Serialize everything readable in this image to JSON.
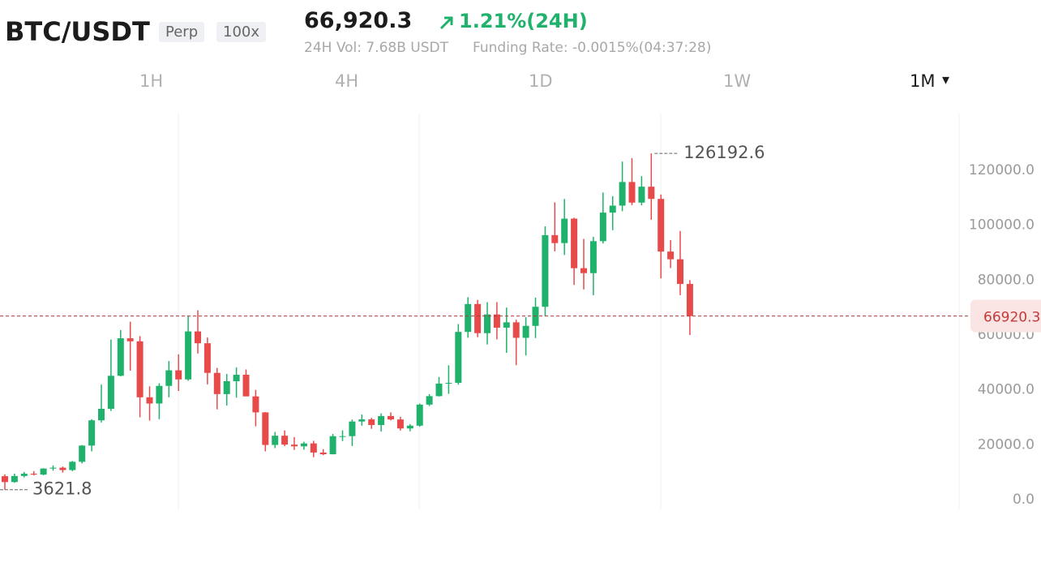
{
  "header": {
    "symbol": "BTC/USDT",
    "contract_type": "Perp",
    "leverage": "100x",
    "last_price": "66,920.3",
    "change": "1.21%(24H)",
    "volume": "24H Vol: 7.68B USDT",
    "funding_rate": "Funding Rate: -0.0015%(04:37:28)"
  },
  "tabs": {
    "items": [
      "1H",
      "4H",
      "1D",
      "1W",
      "1M"
    ],
    "active": "1M"
  },
  "chart_data": {
    "type": "candlestick",
    "open": [
      8540,
      6410,
      8620,
      9450,
      9140,
      11330,
      11650,
      10780,
      13800,
      19700,
      28900,
      33100,
      45140,
      58800,
      57700,
      37300,
      35040,
      41460,
      47130,
      43820,
      61300,
      57000,
      46200,
      38470,
      43160,
      45510,
      37630,
      31800,
      19940,
      23300,
      20050,
      19420,
      20490,
      17160,
      16540,
      23130,
      23140,
      28470,
      29250,
      27200,
      30470,
      29230,
      25940,
      26960,
      34640,
      37720,
      42280,
      42580,
      61130,
      71290,
      60670,
      67500,
      62680,
      64630,
      58970,
      63330,
      70290,
      96400,
      93500,
      102400,
      84350,
      82550,
      94200,
      104600,
      107150,
      115760,
      108250,
      114050,
      109600,
      90400,
      87600,
      78600
    ],
    "high": [
      9200,
      9470,
      10080,
      10380,
      11450,
      12470,
      12070,
      14100,
      19900,
      29300,
      41950,
      58350,
      61800,
      64850,
      59600,
      41300,
      42400,
      50500,
      52950,
      67000,
      69000,
      59100,
      47990,
      45800,
      48200,
      47450,
      40000,
      31900,
      24670,
      25200,
      22800,
      21100,
      21450,
      18400,
      23950,
      25250,
      29200,
      31000,
      29820,
      31430,
      31800,
      30200,
      27490,
      35000,
      38450,
      44700,
      48970,
      64000,
      73780,
      72800,
      71980,
      72000,
      70000,
      65600,
      66500,
      73600,
      99600,
      108350,
      109590,
      102750,
      95000,
      95750,
      111950,
      110600,
      123200,
      124450,
      117900,
      126192.6,
      111200,
      94600,
      97900,
      80000
    ],
    "low": [
      3621.8,
      6150,
      8100,
      8830,
      8900,
      10550,
      9850,
      10370,
      13200,
      17600,
      28130,
      32300,
      44950,
      47000,
      30000,
      28800,
      29300,
      37300,
      39600,
      43300,
      53250,
      42000,
      32900,
      34300,
      37150,
      37700,
      26700,
      17600,
      18780,
      19500,
      18150,
      18200,
      15480,
      16250,
      16500,
      21350,
      19550,
      26940,
      25800,
      24800,
      28860,
      25170,
      24900,
      26560,
      34100,
      37600,
      38550,
      41880,
      59000,
      59200,
      56550,
      58400,
      53500,
      49000,
      52550,
      58900,
      66800,
      90500,
      89160,
      78250,
      76600,
      74500,
      93350,
      98200,
      105100,
      107350,
      107250,
      102000,
      80600,
      84400,
      74500,
      60000
    ],
    "close": [
      6410,
      8620,
      9450,
      9140,
      11330,
      11650,
      10780,
      13800,
      19700,
      28900,
      33100,
      45140,
      58800,
      57700,
      37300,
      35040,
      41460,
      47130,
      43820,
      61300,
      57000,
      46200,
      38470,
      43160,
      45510,
      37630,
      31800,
      19940,
      23300,
      20050,
      19420,
      20490,
      17160,
      16540,
      23130,
      23140,
      28470,
      29250,
      27200,
      30470,
      29230,
      25940,
      26960,
      34640,
      37720,
      42280,
      42580,
      61130,
      71290,
      60670,
      67500,
      62680,
      64630,
      58970,
      63330,
      70290,
      96400,
      93500,
      102400,
      84350,
      82550,
      94200,
      104600,
      107150,
      115760,
      108250,
      114050,
      109600,
      90400,
      87600,
      78600,
      66920.3
    ],
    "up_color": "#20b26c",
    "down_color": "#e84a4a",
    "ylim": [
      0,
      140700
    ],
    "yticks": [
      {
        "value": 0,
        "label": "0.0"
      },
      {
        "value": 20000,
        "label": "20000.0"
      },
      {
        "value": 40000,
        "label": "40000.0"
      },
      {
        "value": 60000,
        "label": "60000.0"
      },
      {
        "value": 80000,
        "label": "80000.0"
      },
      {
        "value": 100000,
        "label": "100000.0"
      },
      {
        "value": 120000,
        "label": "120000.0"
      }
    ],
    "grid": false
  }
}
